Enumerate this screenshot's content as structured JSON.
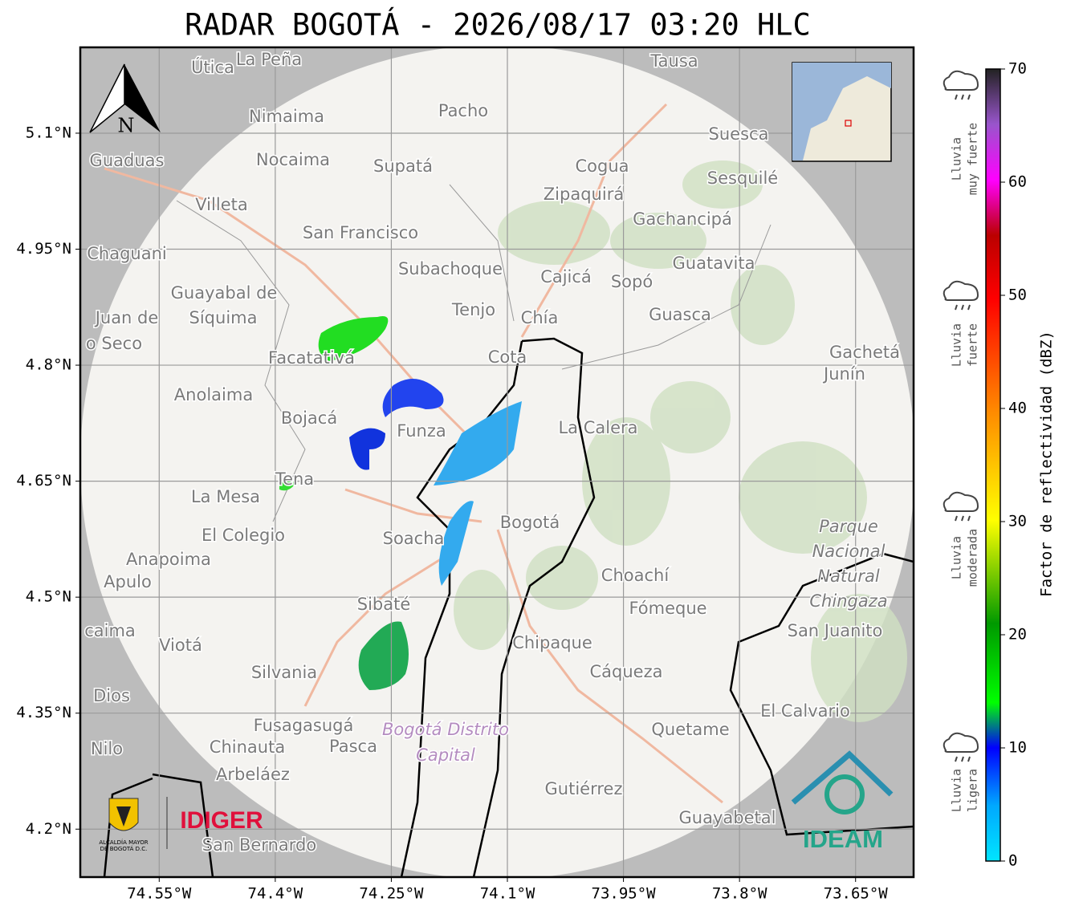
{
  "title": "RADAR BOGOTÁ - 2026/08/17 03:20 HLC",
  "map": {
    "north_label": "N",
    "xlim": [
      -74.652,
      -73.575
    ],
    "ylim": [
      4.138,
      5.211
    ],
    "xticks": [
      {
        "value": -74.55,
        "label": "74.55°W"
      },
      {
        "value": -74.4,
        "label": "74.4°W"
      },
      {
        "value": -74.25,
        "label": "74.25°W"
      },
      {
        "value": -74.1,
        "label": "74.1°W"
      },
      {
        "value": -73.95,
        "label": "73.95°W"
      },
      {
        "value": -73.8,
        "label": "73.8°W"
      },
      {
        "value": -73.65,
        "label": "73.65°W"
      }
    ],
    "yticks": [
      {
        "value": 5.1,
        "label": "5.1°N"
      },
      {
        "value": 4.95,
        "label": "4.95°N"
      },
      {
        "value": 4.8,
        "label": "4.8°N"
      },
      {
        "value": 4.65,
        "label": "4.65°N"
      },
      {
        "value": 4.5,
        "label": "4.5°N"
      },
      {
        "value": 4.35,
        "label": "4.35°N"
      },
      {
        "value": 4.2,
        "label": "4.2°N"
      }
    ],
    "places": [
      "Útica",
      "La Peña",
      "Tausa",
      "Nimaima",
      "Pacho",
      "Guaduas",
      "Nocaima",
      "Supatá",
      "Cogua",
      "Suesca",
      "Sesquilé",
      "Villeta",
      "Zipaquirá",
      "Gachancipá",
      "San Francisco",
      "Chaguani",
      "Guatavita",
      "Subachoque",
      "Cajicá",
      "Sopó",
      "Guayabal de",
      "Síquima",
      "Tenjo",
      "Chía",
      "Guasca",
      "Juan de",
      "o Seco",
      "Facatativá",
      "Cota",
      "Gachetá",
      "Junín",
      "Anolaima",
      "Bojacá",
      "Funza",
      "La Calera",
      "Tena",
      "La Mesa",
      "Bogotá",
      "Parque",
      "Nacional",
      "Natural",
      "Chingaza",
      "El Colegio",
      "Soacha",
      "Anapoima",
      "Apulo",
      "Choachí",
      "Sibaté",
      "Fómeque",
      "San Juanito",
      "caima",
      "Viotá",
      "Chipaque",
      "Silvania",
      "Cáqueza",
      "Dios",
      "El Calvario",
      "Fusagasugá",
      "Bogotá Distrito",
      "Capital",
      "Quetame",
      "Nilo",
      "Chinauta",
      "Pasca",
      "Arbeláez",
      "Gutiérrez",
      "Guayabetal",
      "San Bernardo"
    ]
  },
  "colorbar": {
    "label": "Factor de reflectividad (dBZ)",
    "lim": [
      0,
      70
    ],
    "ticks": [
      0,
      10,
      20,
      30,
      40,
      50,
      60,
      70
    ]
  },
  "rain_categories": [
    [
      "Lluvia",
      "muy fuerte"
    ],
    [
      "Lluvia",
      "fuerte"
    ],
    [
      "Lluvia",
      "moderada"
    ],
    [
      "Lluvia",
      "ligera"
    ]
  ],
  "logos": {
    "alcaldia_line1": "ALCALDÍA MAYOR",
    "alcaldia_line2": "DE BOGOTÁ D.C.",
    "idiger": "IDIGER",
    "ideam": "IDEAM"
  }
}
